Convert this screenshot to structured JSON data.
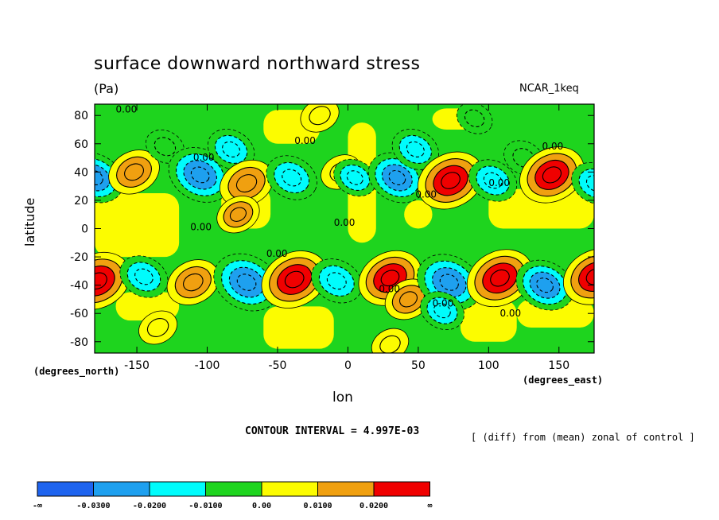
{
  "title": "surface downward northward stress",
  "units": "(Pa)",
  "model": "NCAR_1keq",
  "ylabel": "latitude",
  "xlabel": "lon",
  "y_units": "(degrees_north)",
  "x_units": "(degrees_east)",
  "contour_interval": "CONTOUR INTERVAL = 4.997E-03",
  "note": "[ (diff) from (mean) zonal of control ]",
  "colors": {
    "c0": "#1e64ef",
    "c1": "#1ea0ef",
    "c2": "#00fcfc",
    "c3": "#1ed41e",
    "c4": "#fcfc00",
    "c5": "#f0a010",
    "c6": "#f00000"
  },
  "chart_data": {
    "type": "heatmap",
    "title": "surface downward northward stress",
    "xlabel": "lon",
    "ylabel": "latitude",
    "xlim": [
      -180,
      175
    ],
    "ylim": [
      -88,
      88
    ],
    "x_ticks": [
      -150,
      -100,
      -50,
      0,
      50,
      100,
      150
    ],
    "y_ticks": [
      80,
      60,
      40,
      20,
      0,
      -20,
      -40,
      -60,
      -80
    ],
    "x_tick_labels": [
      "-150",
      "-100",
      "-50",
      "0",
      "50",
      "100",
      "150"
    ],
    "y_tick_labels": [
      "80",
      "60",
      "40",
      "20",
      "0",
      "-20",
      "-40",
      "-60",
      "-80"
    ],
    "contour_labels": [
      {
        "text": "0.00",
        "lon": -165,
        "lat": 82
      },
      {
        "text": "0.00",
        "lon": -110,
        "lat": 48
      },
      {
        "text": "0.00",
        "lon": -38,
        "lat": 60
      },
      {
        "text": "0.00",
        "lon": -10,
        "lat": 2
      },
      {
        "text": "0.00",
        "lon": -112,
        "lat": -1
      },
      {
        "text": "0.00",
        "lon": -58,
        "lat": -20
      },
      {
        "text": "0.00",
        "lon": 48,
        "lat": 22
      },
      {
        "text": "0.00",
        "lon": 100,
        "lat": 30
      },
      {
        "text": "0.00",
        "lon": 138,
        "lat": 56
      },
      {
        "text": "0.00",
        "lon": 22,
        "lat": -45
      },
      {
        "text": "0.00",
        "lon": 60,
        "lat": -55
      },
      {
        "text": "0.00",
        "lon": 108,
        "lat": -62
      }
    ],
    "anomalies": [
      {
        "lon": -180,
        "lat": 36,
        "value": -0.022
      },
      {
        "lon": -152,
        "lat": 40,
        "value": 0.017
      },
      {
        "lon": -130,
        "lat": 58,
        "value": -0.008
      },
      {
        "lon": -105,
        "lat": 38,
        "value": -0.026
      },
      {
        "lon": -83,
        "lat": 56,
        "value": -0.014
      },
      {
        "lon": -72,
        "lat": 32,
        "value": 0.019
      },
      {
        "lon": -78,
        "lat": 10,
        "value": 0.011
      },
      {
        "lon": -40,
        "lat": 36,
        "value": -0.017
      },
      {
        "lon": -5,
        "lat": 40,
        "value": 0.009
      },
      {
        "lon": 5,
        "lat": 36,
        "value": -0.011
      },
      {
        "lon": 35,
        "lat": 36,
        "value": -0.022
      },
      {
        "lon": 48,
        "lat": 56,
        "value": -0.014
      },
      {
        "lon": 73,
        "lat": 34,
        "value": 0.028
      },
      {
        "lon": 103,
        "lat": 34,
        "value": -0.015
      },
      {
        "lon": 125,
        "lat": 50,
        "value": -0.009
      },
      {
        "lon": 145,
        "lat": 38,
        "value": 0.027
      },
      {
        "lon": 176,
        "lat": 32,
        "value": -0.015
      },
      {
        "lon": -178,
        "lat": -37,
        "value": 0.028
      },
      {
        "lon": -145,
        "lat": -34,
        "value": -0.015
      },
      {
        "lon": -110,
        "lat": -38,
        "value": 0.018
      },
      {
        "lon": -72,
        "lat": -38,
        "value": -0.028
      },
      {
        "lon": -38,
        "lat": -36,
        "value": 0.028
      },
      {
        "lon": -8,
        "lat": -37,
        "value": -0.017
      },
      {
        "lon": 30,
        "lat": -35,
        "value": 0.026
      },
      {
        "lon": 43,
        "lat": -50,
        "value": 0.014
      },
      {
        "lon": 72,
        "lat": -38,
        "value": -0.027
      },
      {
        "lon": 67,
        "lat": -58,
        "value": -0.012
      },
      {
        "lon": 108,
        "lat": -35,
        "value": 0.028
      },
      {
        "lon": 140,
        "lat": -40,
        "value": -0.022
      },
      {
        "lon": 176,
        "lat": -34,
        "value": 0.027
      },
      {
        "lon": -135,
        "lat": -70,
        "value": 0.008
      },
      {
        "lon": 30,
        "lat": -82,
        "value": 0.007
      },
      {
        "lon": -20,
        "lat": 80,
        "value": 0.008
      },
      {
        "lon": 90,
        "lat": 78,
        "value": -0.006
      }
    ],
    "colorbar": {
      "labels": [
        "-∞",
        "-0.0300",
        "-0.0200",
        "-0.0100",
        "0.00",
        "0.0100",
        "0.0200",
        "∞"
      ],
      "levels": [
        -0.03,
        -0.02,
        -0.01,
        0.0,
        0.01,
        0.02
      ]
    }
  }
}
